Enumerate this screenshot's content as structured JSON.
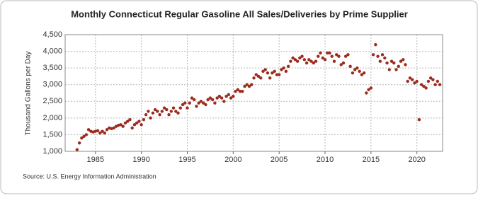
{
  "chart_data": {
    "type": "scatter",
    "title": "Monthly Connecticut Regular Gasoline All Sales/Deliveries by Prime Supplier",
    "y_label": "Thousand Gallons per Day",
    "source": "Source: U.S. Energy Information Administration",
    "color": "#9b2c1f",
    "grid": true,
    "xlim": [
      1981.7,
      2022.8
    ],
    "xticks": [
      1985,
      1990,
      1995,
      2000,
      2005,
      2010,
      2015,
      2020
    ],
    "ylim": [
      1000,
      4500
    ],
    "yticks": [
      {
        "value": 1000,
        "label": "1,000"
      },
      {
        "value": 1500,
        "label": "1,500"
      },
      {
        "value": 2000,
        "label": "2,000"
      },
      {
        "value": 2500,
        "label": "2,500"
      },
      {
        "value": 3000,
        "label": "3,000"
      },
      {
        "value": 3500,
        "label": "3,500"
      },
      {
        "value": 4000,
        "label": "4,000"
      },
      {
        "value": 4500,
        "label": "4,500"
      }
    ],
    "x": [
      1983,
      1983.25,
      1983.5,
      1983.75,
      1984,
      1984.25,
      1984.5,
      1984.75,
      1985,
      1985.25,
      1985.5,
      1985.75,
      1986,
      1986.25,
      1986.5,
      1986.75,
      1987,
      1987.25,
      1987.5,
      1987.75,
      1988,
      1988.25,
      1988.5,
      1988.75,
      1989,
      1989.25,
      1989.5,
      1989.75,
      1990,
      1990.25,
      1990.5,
      1990.75,
      1991,
      1991.25,
      1991.5,
      1991.75,
      1992,
      1992.25,
      1992.5,
      1992.75,
      1993,
      1993.25,
      1993.5,
      1993.75,
      1994,
      1994.25,
      1994.5,
      1994.75,
      1995,
      1995.25,
      1995.5,
      1995.75,
      1996,
      1996.25,
      1996.5,
      1996.75,
      1997,
      1997.25,
      1997.5,
      1997.75,
      1998,
      1998.25,
      1998.5,
      1998.75,
      1999,
      1999.25,
      1999.5,
      1999.75,
      2000,
      2000.25,
      2000.5,
      2000.75,
      2001,
      2001.25,
      2001.5,
      2001.75,
      2002,
      2002.25,
      2002.5,
      2002.75,
      2003,
      2003.25,
      2003.5,
      2003.75,
      2004,
      2004.25,
      2004.5,
      2004.75,
      2005,
      2005.25,
      2005.5,
      2005.75,
      2006,
      2006.25,
      2006.5,
      2006.75,
      2007,
      2007.25,
      2007.5,
      2007.75,
      2008,
      2008.25,
      2008.5,
      2008.75,
      2009,
      2009.25,
      2009.5,
      2009.75,
      2010,
      2010.25,
      2010.5,
      2010.75,
      2011,
      2011.25,
      2011.5,
      2011.75,
      2012,
      2012.25,
      2012.5,
      2012.75,
      2013,
      2013.25,
      2013.5,
      2013.75,
      2014,
      2014.25,
      2014.5,
      2014.75,
      2015,
      2015.25,
      2015.5,
      2015.75,
      2016,
      2016.25,
      2016.5,
      2016.75,
      2017,
      2017.25,
      2017.5,
      2017.75,
      2018,
      2018.25,
      2018.5,
      2018.75,
      2019,
      2019.25,
      2019.5,
      2019.75,
      2020,
      2020.25,
      2020.5,
      2020.75,
      2021,
      2021.25,
      2021.5,
      2021.75,
      2022,
      2022.25,
      2022.5
    ],
    "values": [
      1050,
      1250,
      1400,
      1450,
      1500,
      1650,
      1600,
      1580,
      1600,
      1620,
      1550,
      1600,
      1550,
      1650,
      1700,
      1680,
      1700,
      1750,
      1780,
      1800,
      1750,
      1850,
      1900,
      1950,
      1700,
      1800,
      1850,
      1900,
      1800,
      1950,
      2100,
      2200,
      2000,
      2150,
      2250,
      2200,
      2100,
      2200,
      2300,
      2250,
      2100,
      2200,
      2300,
      2200,
      2150,
      2300,
      2400,
      2450,
      2300,
      2450,
      2600,
      2550,
      2350,
      2450,
      2500,
      2450,
      2400,
      2550,
      2600,
      2550,
      2450,
      2600,
      2650,
      2600,
      2500,
      2650,
      2700,
      2600,
      2650,
      2800,
      2850,
      2800,
      2800,
      2950,
      3000,
      2950,
      3000,
      3200,
      3300,
      3250,
      3200,
      3400,
      3450,
      3350,
      3200,
      3350,
      3400,
      3300,
      3300,
      3450,
      3500,
      3400,
      3550,
      3700,
      3800,
      3750,
      3700,
      3800,
      3850,
      3750,
      3650,
      3750,
      3700,
      3650,
      3700,
      3850,
      3950,
      3800,
      3750,
      3950,
      3950,
      3850,
      3700,
      3900,
      3850,
      3600,
      3650,
      3850,
      3900,
      3550,
      3350,
      3450,
      3500,
      3400,
      3300,
      3350,
      2750,
      2850,
      2900,
      3900,
      4200,
      3850,
      3700,
      3900,
      3800,
      3650,
      3450,
      3700,
      3650,
      3450,
      3550,
      3700,
      3750,
      3600,
      3100,
      3200,
      3150,
      3050,
      3100,
      1950,
      3000,
      2950,
      2900,
      3100,
      3200,
      3150,
      3000,
      3100,
      3000
    ]
  }
}
